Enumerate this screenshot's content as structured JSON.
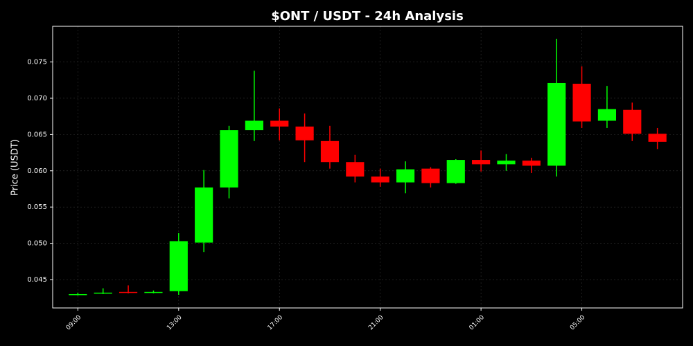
{
  "chart_data": {
    "type": "candlestick",
    "title": "$ONT / USDT - 24h Analysis",
    "y_label": "Price (USDT)",
    "categories": [
      "09:00",
      null,
      null,
      null,
      "13:00",
      null,
      null,
      null,
      "17:00",
      null,
      null,
      null,
      "21:00",
      null,
      null,
      null,
      "01:00",
      null,
      null,
      null,
      "05:00",
      null,
      null,
      null
    ],
    "open": [
      0.0429,
      0.0431,
      0.0433,
      0.0432,
      0.0434,
      0.0501,
      0.0577,
      0.0656,
      0.0669,
      0.0661,
      0.0641,
      0.0612,
      0.0592,
      0.0584,
      0.0603,
      0.0583,
      0.0615,
      0.0609,
      0.0614,
      0.0607,
      0.072,
      0.0669,
      0.0684,
      0.0651
    ],
    "high": [
      0.0432,
      0.0438,
      0.0442,
      0.0435,
      0.0514,
      0.0601,
      0.0662,
      0.0738,
      0.0686,
      0.0679,
      0.0662,
      0.0622,
      0.0603,
      0.0613,
      0.0605,
      0.0616,
      0.0628,
      0.0623,
      0.0618,
      0.0782,
      0.0744,
      0.0717,
      0.0694,
      0.0659
    ],
    "low": [
      0.0428,
      0.043,
      0.0431,
      0.0431,
      0.0429,
      0.0488,
      0.0562,
      0.0641,
      0.0642,
      0.0612,
      0.0603,
      0.0584,
      0.0578,
      0.0569,
      0.0577,
      0.0582,
      0.0599,
      0.06,
      0.0597,
      0.0592,
      0.0659,
      0.0659,
      0.0641,
      0.063
    ],
    "close": [
      0.043,
      0.0432,
      0.0432,
      0.0433,
      0.0503,
      0.0577,
      0.0656,
      0.0669,
      0.0661,
      0.0642,
      0.0612,
      0.0592,
      0.0584,
      0.0602,
      0.0583,
      0.0615,
      0.0609,
      0.0614,
      0.0607,
      0.0721,
      0.0668,
      0.0685,
      0.0651,
      0.064
    ],
    "up_color": "#00ff00",
    "down_color": "#ff0000",
    "ylim": [
      0.04109,
      0.07992
    ],
    "yticks": [
      0.045,
      {
        "value": 0.05,
        "label": "0.050"
      },
      0.055,
      {
        "value": 0.06,
        "label": "0.060"
      },
      0.065,
      {
        "value": 0.07,
        "label": "0.070"
      },
      0.075
    ],
    "grid": true
  }
}
